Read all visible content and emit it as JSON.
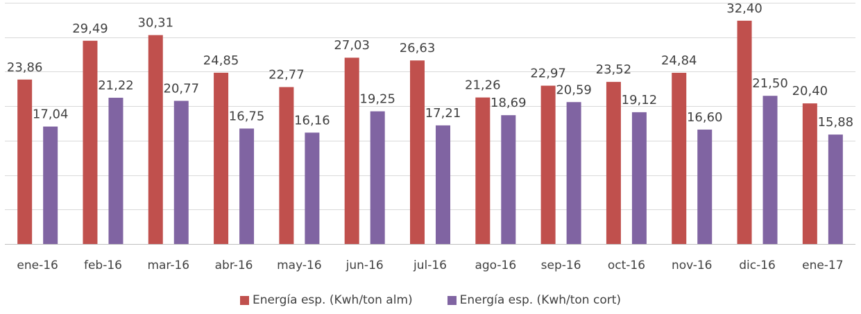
{
  "chart_data": {
    "type": "bar",
    "categories": [
      "ene-16",
      "feb-16",
      "mar-16",
      "abr-16",
      "may-16",
      "jun-16",
      "jul-16",
      "ago-16",
      "sep-16",
      "oct-16",
      "nov-16",
      "dic-16",
      "ene-17"
    ],
    "series": [
      {
        "name": "Energía esp. (Kwh/ton alm)",
        "color": "#C0504D",
        "values": [
          23.86,
          29.49,
          30.31,
          24.85,
          22.77,
          27.03,
          26.63,
          21.26,
          22.97,
          23.52,
          24.84,
          32.4,
          20.4
        ],
        "labels": [
          "23,86",
          "29,49",
          "30,31",
          "24,85",
          "22,77",
          "27,03",
          "26,63",
          "21,26",
          "22,97",
          "23,52",
          "24,84",
          "32,40",
          "20,40"
        ]
      },
      {
        "name": "Energía esp. (Kwh/ton cort)",
        "color": "#8064A2",
        "values": [
          17.04,
          21.22,
          20.77,
          16.75,
          16.16,
          19.25,
          17.21,
          18.69,
          20.59,
          19.12,
          16.6,
          21.5,
          15.88
        ],
        "labels": [
          "17,04",
          "21,22",
          "20,77",
          "16,75",
          "16,16",
          "19,25",
          "17,21",
          "18,69",
          "20,59",
          "19,12",
          "16,60",
          "21,50",
          "15,88"
        ]
      }
    ],
    "ylim": [
      0,
      35
    ],
    "gridlines": true,
    "gridline_step": 5,
    "legend_position": "bottom",
    "title": "",
    "xlabel": "",
    "ylabel": ""
  }
}
